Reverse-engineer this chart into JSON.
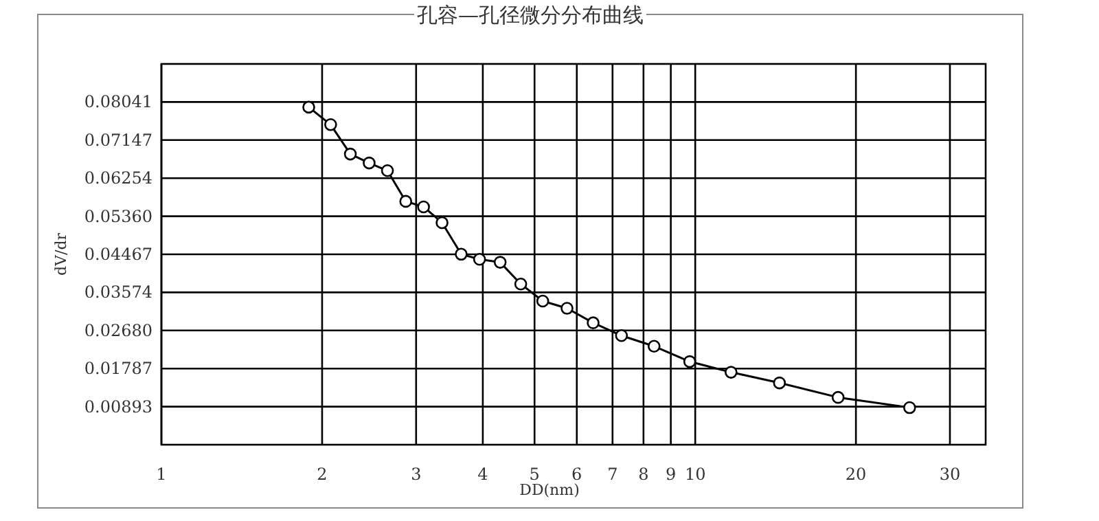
{
  "chart_data": {
    "type": "line",
    "title": "孔容—孔径微分分布曲线",
    "xlabel": "DD(nm)",
    "ylabel": "dV/dr",
    "x": [
      1.888,
      2.075,
      2.259,
      2.45,
      2.651,
      2.869,
      3.098,
      3.355,
      3.644,
      3.944,
      4.311,
      4.711,
      5.18,
      5.752,
      6.438,
      7.275,
      8.373,
      9.765,
      11.67,
      14.38,
      18.52,
      25.21
    ],
    "values": [
      0.0792,
      0.0751,
      0.0682,
      0.0661,
      0.0643,
      0.0571,
      0.0558,
      0.0521,
      0.0447,
      0.0435,
      0.0428,
      0.0377,
      0.0337,
      0.032,
      0.0286,
      0.0256,
      0.0231,
      0.0195,
      0.017,
      0.0145,
      0.0111,
      0.0087
    ],
    "color": "#000000",
    "marker": "circle",
    "line_style": "solid",
    "log": "x",
    "grid": true,
    "xlim": [
      1,
      35
    ],
    "xticks": [
      1,
      2,
      3,
      4,
      5,
      6,
      7,
      8,
      9,
      10,
      20,
      30
    ],
    "ylim": [
      0,
      0.08934
    ],
    "yticks": [
      {
        "value": 0.00893,
        "label": "0.00893"
      },
      {
        "value": 0.01787,
        "label": "0.01787"
      },
      {
        "value": 0.0268,
        "label": "0.02680"
      },
      {
        "value": 0.03574,
        "label": "0.03574"
      },
      {
        "value": 0.04467,
        "label": "0.04467"
      },
      {
        "value": 0.0536,
        "label": "0.05360"
      },
      {
        "value": 0.06254,
        "label": "0.06254"
      },
      {
        "value": 0.07147,
        "label": "0.07147"
      },
      {
        "value": 0.08041,
        "label": "0.08041"
      }
    ]
  }
}
